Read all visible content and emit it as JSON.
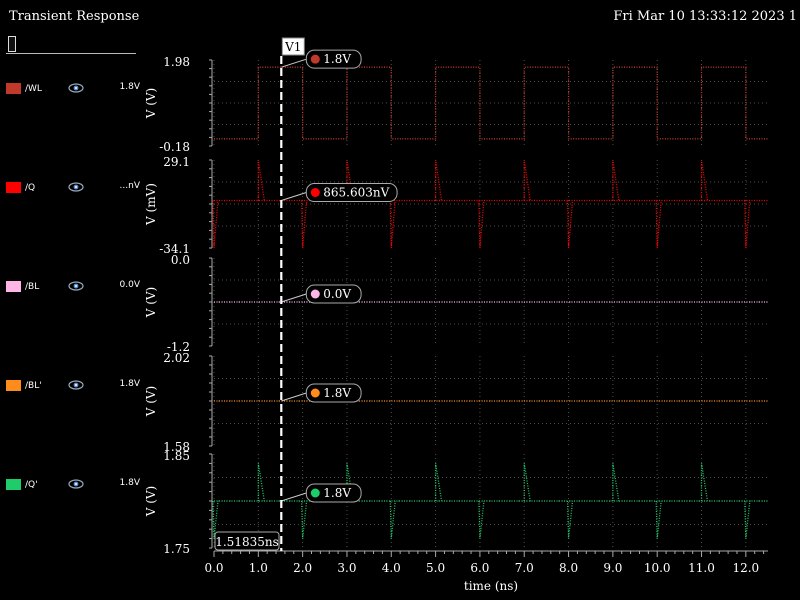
{
  "window": {
    "title": "Transient Response",
    "datestamp": "Fri Mar 10 13:33:12 2023  1"
  },
  "legend": [
    {
      "name": "/WL",
      "value": "1.8V",
      "color": "#c0392b"
    },
    {
      "name": "/Q",
      "value": "...nV",
      "color": "#ff0000"
    },
    {
      "name": "/BL",
      "value": "0.0V",
      "color": "#ffb6e6"
    },
    {
      "name": "/BL'",
      "value": "1.8V",
      "color": "#ff8c1a"
    },
    {
      "name": "/Q'",
      "value": "1.8V",
      "color": "#1ecc6a"
    }
  ],
  "chart_data": {
    "type": "line",
    "xlabel": "time (ns)",
    "xlim": [
      0,
      12.5
    ],
    "x_ticks": [
      "0.0",
      "1.0",
      "2.0",
      "3.0",
      "4.0",
      "5.0",
      "6.0",
      "7.0",
      "8.0",
      "9.0",
      "10.0",
      "11.0",
      "12.0"
    ],
    "x_tick_values": [
      0,
      1,
      2,
      3,
      4,
      5,
      6,
      7,
      8,
      9,
      10,
      11,
      12
    ],
    "grid": true,
    "cursor": {
      "name": "V1",
      "x_ns": 1.51835,
      "x_label": "1.51835ns"
    },
    "panels": [
      {
        "signal": "/WL",
        "ylabel": "V (V)",
        "ylim": [
          -0.18,
          1.98
        ],
        "y_ticks": [
          "1.98",
          "-0.18"
        ],
        "marker_label": "1.8V",
        "marker_value": 1.8,
        "color": "#c0392b",
        "waveform": {
          "kind": "square",
          "low": 0.0,
          "high": 1.8,
          "rise_times_ns": [
            1,
            3,
            5,
            7,
            9,
            11
          ],
          "fall_times_ns": [
            2,
            4,
            6,
            8,
            10,
            12
          ]
        }
      },
      {
        "signal": "/Q",
        "ylabel": "V (mV)",
        "ylim": [
          -34.1,
          29.1
        ],
        "y_ticks": [
          "29.1",
          "-34.1"
        ],
        "marker_label": "865.603nV",
        "marker_value": 0.0,
        "color": "#ff0000",
        "waveform": {
          "kind": "spikes",
          "baseline": 0.0,
          "up_spikes_ns": [
            1,
            3,
            5,
            7,
            9,
            11
          ],
          "up_peak": 29.1,
          "down_spikes_ns": [
            0,
            2,
            4,
            6,
            8,
            10,
            12
          ],
          "down_peak": -34.1
        }
      },
      {
        "signal": "/BL",
        "ylabel": "V (V)",
        "ylim": [
          -1.2,
          1.2
        ],
        "y_ticks": [
          "0.0",
          "-1.2"
        ],
        "marker_label": "0.0V",
        "marker_value": 0.0,
        "color": "#ffb6e6",
        "waveform": {
          "kind": "flat",
          "level": 0.0
        }
      },
      {
        "signal": "/BL'",
        "ylabel": "V (V)",
        "ylim": [
          1.58,
          2.02
        ],
        "y_ticks": [
          "2.02",
          "1.58"
        ],
        "marker_label": "1.8V",
        "marker_value": 1.8,
        "color": "#ff8c1a",
        "waveform": {
          "kind": "flat",
          "level": 1.8
        }
      },
      {
        "signal": "/Q'",
        "ylabel": "V (V)",
        "ylim": [
          1.75,
          1.85
        ],
        "y_ticks": [
          "1.85",
          "1.75"
        ],
        "marker_label": "1.8V",
        "marker_value": 1.8,
        "color": "#1ecc6a",
        "waveform": {
          "kind": "spikes",
          "baseline": 1.8,
          "up_spikes_ns": [
            1,
            3,
            5,
            7,
            9,
            11
          ],
          "up_peak": 1.84,
          "down_spikes_ns": [
            0,
            2,
            4,
            6,
            8,
            10,
            12
          ],
          "down_peak": 1.76
        }
      }
    ]
  }
}
